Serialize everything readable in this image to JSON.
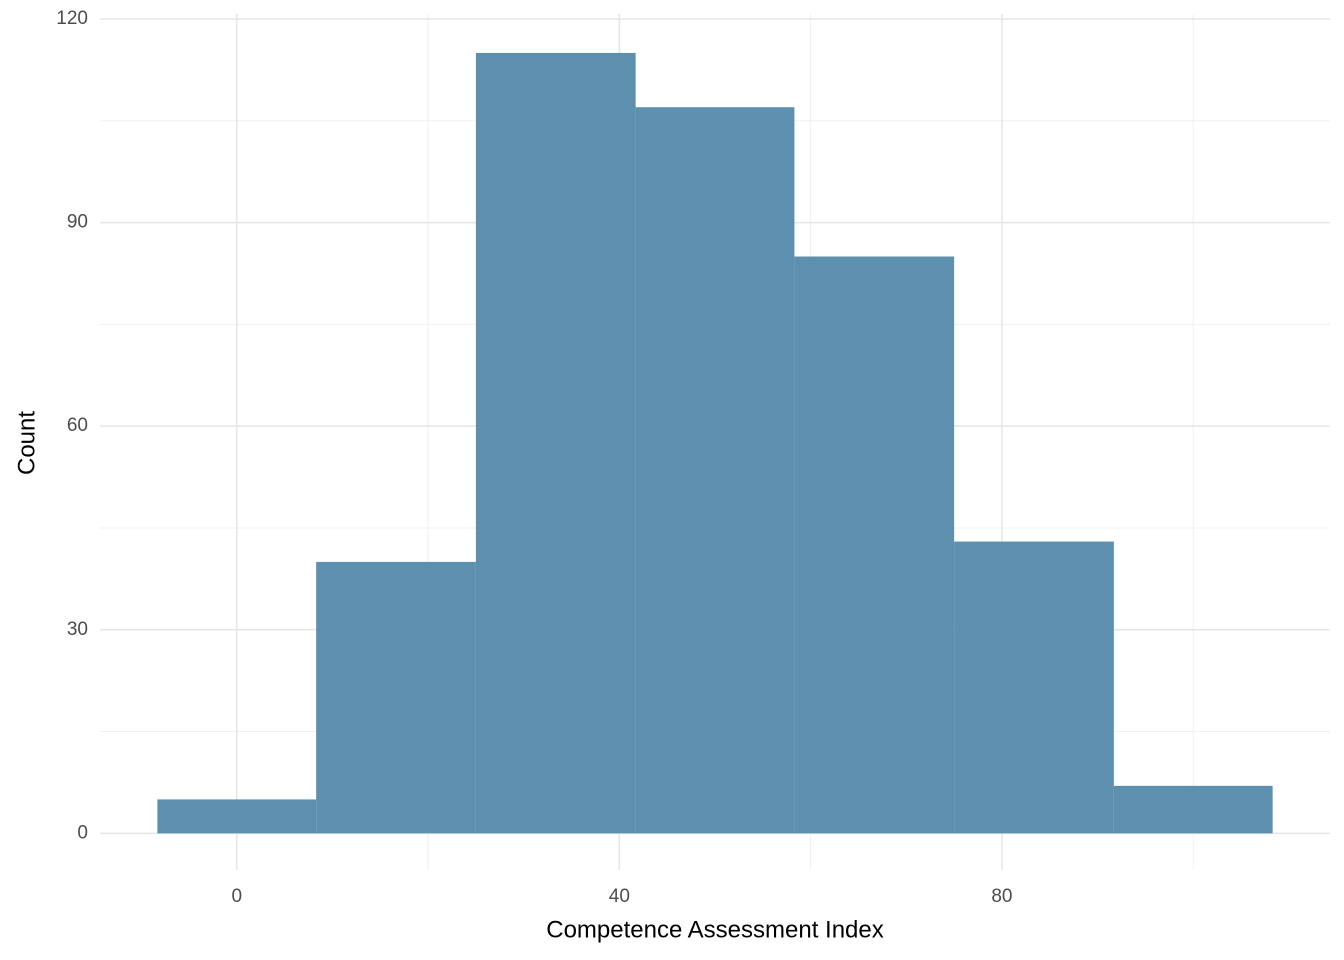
{
  "chart_data": {
    "type": "histogram",
    "xlabel": "Competence Assessment Index",
    "ylabel": "Count",
    "bins": [
      -8.3,
      8.3,
      25,
      41.7,
      58.3,
      75,
      91.7,
      108.3
    ],
    "values": [
      5,
      40,
      115,
      107,
      85,
      43,
      7
    ],
    "color": "#5d8fae",
    "xlim": [
      -14.3,
      114.3
    ],
    "xticks": [
      0,
      40,
      80
    ],
    "ylim": [
      -5.4,
      120
    ],
    "yticks": [
      0,
      30,
      60,
      90,
      120
    ],
    "grid": true
  }
}
